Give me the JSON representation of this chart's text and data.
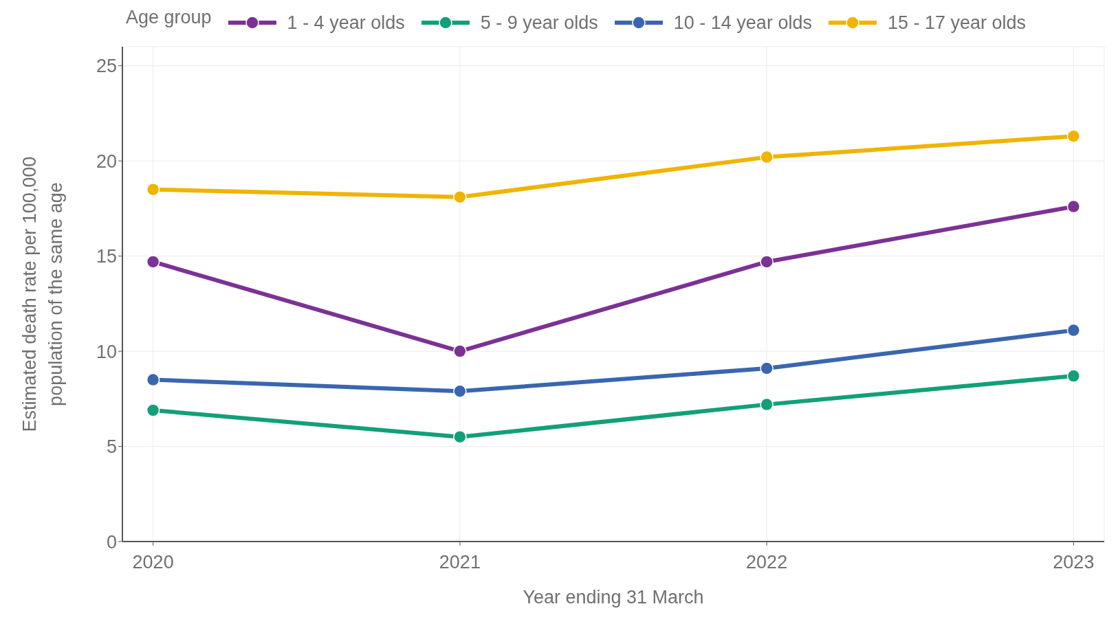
{
  "chart_data": {
    "type": "line",
    "xlabel": "Year ending 31 March",
    "ylabel": "Estimated death rate per 100,000 population of the same age",
    "legend_title": "Age group",
    "x": [
      2020,
      2021,
      2022,
      2023
    ],
    "xlim": [
      2019.9,
      2023.1
    ],
    "xticks": [
      2020,
      2021,
      2022,
      2023
    ],
    "ylim": [
      0,
      26
    ],
    "yticks": [
      0,
      5,
      10,
      15,
      20,
      25
    ],
    "grid": true,
    "legend": "top",
    "marker": "circle",
    "line_style": "solid",
    "series": [
      {
        "name": "1 - 4 year olds",
        "color": "#7b3294",
        "values": [
          14.7,
          10.0,
          14.7,
          17.6
        ]
      },
      {
        "name": "5 - 9 year olds",
        "color": "#12a079",
        "values": [
          6.9,
          5.5,
          7.2,
          8.7
        ]
      },
      {
        "name": "10 - 14 year olds",
        "color": "#3a66b0",
        "values": [
          8.5,
          7.9,
          9.1,
          11.1
        ]
      },
      {
        "name": "15 - 17 year olds",
        "color": "#f0b400",
        "values": [
          18.5,
          18.1,
          20.2,
          21.3
        ]
      }
    ]
  }
}
